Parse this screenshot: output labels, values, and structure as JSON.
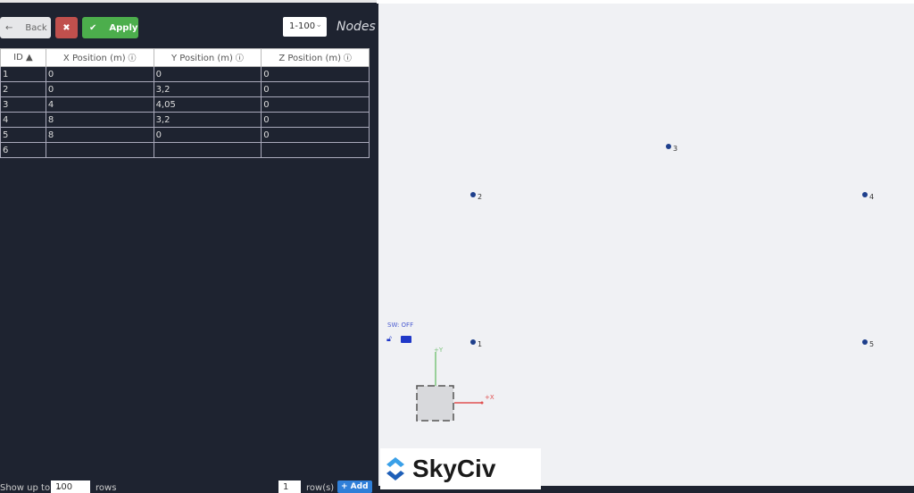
{
  "toolbar": {
    "back_label": "Back",
    "apply_label": "Apply",
    "range": "1-100",
    "title": "Nodes"
  },
  "table": {
    "headers": [
      "ID ▲",
      "X Position (m)",
      "Y Position (m)",
      "Z Position (m)"
    ],
    "rows": [
      [
        "1",
        "0",
        "0",
        "0"
      ],
      [
        "2",
        "0",
        "3,2",
        "0"
      ],
      [
        "3",
        "4",
        "4,05",
        "0"
      ],
      [
        "4",
        "8",
        "3,2",
        "0"
      ],
      [
        "5",
        "8",
        "0",
        "0"
      ],
      [
        "6",
        "",
        "",
        ""
      ]
    ]
  },
  "footer": {
    "show_label": "Show up to",
    "rows_value": "100",
    "rows_label": "rows",
    "add_count": "1",
    "add_rows_label": "row(s)",
    "add_label": "+ Add"
  },
  "viewport": {
    "sw_status": "SW: OFF",
    "nodes": [
      {
        "id": "1"
      },
      {
        "id": "2"
      },
      {
        "id": "3"
      },
      {
        "id": "4"
      },
      {
        "id": "5"
      }
    ],
    "axis_y": "+Y",
    "axis_x": "+X",
    "logo": "SkyCiv"
  },
  "colors": {
    "apply": "#4cae4c",
    "cancel": "#c0504d",
    "add": "#2f7fd8",
    "node": "#1e3f8c"
  }
}
